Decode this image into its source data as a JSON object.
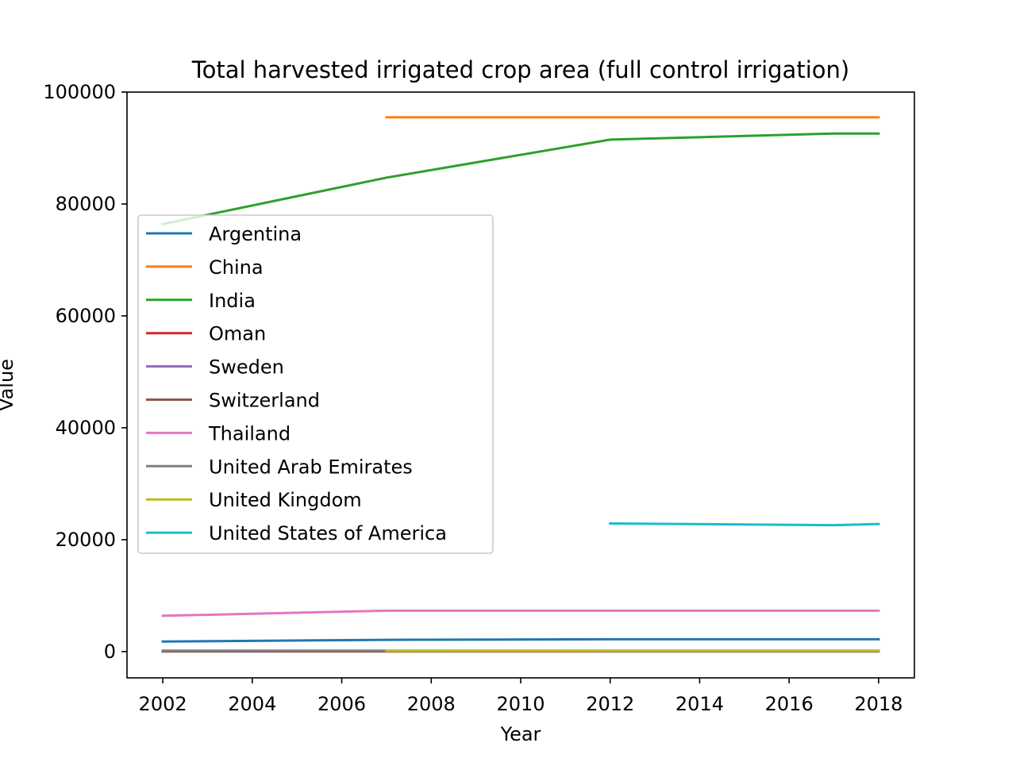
{
  "chart_data": {
    "type": "line",
    "title": "Total harvested irrigated crop area (full control irrigation)",
    "xlabel": "Year",
    "ylabel": "Value",
    "xlim": [
      2001.2,
      2018.8
    ],
    "ylim": [
      -4700,
      100000
    ],
    "xticks": [
      2002,
      2004,
      2006,
      2008,
      2010,
      2012,
      2014,
      2016,
      2018
    ],
    "yticks": [
      0,
      20000,
      40000,
      60000,
      80000,
      100000
    ],
    "grid": false,
    "legend": {
      "placement": "center-left"
    },
    "series": [
      {
        "name": "Argentina",
        "color": "#1f77b4",
        "points": [
          [
            2002,
            1800
          ],
          [
            2007,
            2100
          ],
          [
            2012,
            2200
          ],
          [
            2017,
            2200
          ],
          [
            2018,
            2200
          ]
        ]
      },
      {
        "name": "China",
        "color": "#ff7f0e",
        "points": [
          [
            2007,
            95500
          ],
          [
            2012,
            95500
          ],
          [
            2017,
            95500
          ],
          [
            2018,
            95500
          ]
        ]
      },
      {
        "name": "India",
        "color": "#2ca02c",
        "points": [
          [
            2002,
            76400
          ],
          [
            2007,
            84700
          ],
          [
            2012,
            91500
          ],
          [
            2017,
            92600
          ],
          [
            2018,
            92600
          ]
        ]
      },
      {
        "name": "Oman",
        "color": "#d62728",
        "points": [
          [
            2002,
            60
          ],
          [
            2007,
            80
          ],
          [
            2012,
            90
          ],
          [
            2017,
            90
          ],
          [
            2018,
            90
          ]
        ]
      },
      {
        "name": "Sweden",
        "color": "#9467bd",
        "points": [
          [
            2002,
            50
          ],
          [
            2007,
            60
          ],
          [
            2012,
            60
          ],
          [
            2017,
            60
          ],
          [
            2018,
            60
          ]
        ]
      },
      {
        "name": "Switzerland",
        "color": "#8c564b",
        "points": [
          [
            2002,
            30
          ],
          [
            2007,
            30
          ],
          [
            2012,
            30
          ],
          [
            2017,
            30
          ],
          [
            2018,
            30
          ]
        ]
      },
      {
        "name": "Thailand",
        "color": "#e377c2",
        "points": [
          [
            2002,
            6400
          ],
          [
            2007,
            7300
          ],
          [
            2012,
            7300
          ],
          [
            2017,
            7300
          ],
          [
            2018,
            7300
          ]
        ]
      },
      {
        "name": "United Arab Emirates",
        "color": "#7f7f7f",
        "points": [
          [
            2002,
            150
          ],
          [
            2007,
            150
          ],
          [
            2012,
            150
          ],
          [
            2017,
            150
          ],
          [
            2018,
            150
          ]
        ]
      },
      {
        "name": "United Kingdom",
        "color": "#bcbd22",
        "points": [
          [
            2007,
            130
          ],
          [
            2012,
            130
          ],
          [
            2017,
            130
          ],
          [
            2018,
            130
          ]
        ]
      },
      {
        "name": "United States of America",
        "color": "#17becf",
        "points": [
          [
            2012,
            22900
          ],
          [
            2017,
            22600
          ],
          [
            2018,
            22800
          ]
        ]
      }
    ]
  }
}
